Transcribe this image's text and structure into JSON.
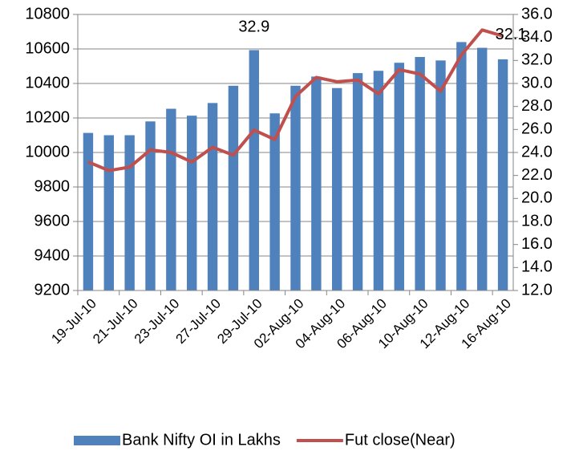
{
  "chart_data": {
    "type": "bar-line",
    "categories": [
      "19-Jul-10",
      null,
      "21-Jul-10",
      null,
      "23-Jul-10",
      null,
      "27-Jul-10",
      null,
      "29-Jul-10",
      null,
      "02-Aug-10",
      null,
      "04-Aug-10",
      null,
      "06-Aug-10",
      null,
      "10-Aug-10",
      null,
      "12-Aug-10",
      null,
      "16-Aug-10"
    ],
    "series": [
      {
        "name": "Bank Nifty OI in Lakhs",
        "type": "bar",
        "axis": "y2",
        "color": "#4f81bd",
        "values": [
          25.7,
          25.5,
          25.5,
          26.7,
          27.8,
          27.2,
          28.3,
          29.8,
          32.9,
          27.4,
          29.8,
          30.6,
          29.6,
          30.9,
          31.1,
          31.8,
          32.3,
          32.0,
          33.6,
          33.1,
          32.1
        ]
      },
      {
        "name": "Fut close(Near)",
        "type": "line",
        "axis": "y",
        "color": "#c0504d",
        "values": [
          9945,
          9895,
          9915,
          10015,
          10000,
          9945,
          10030,
          9985,
          10130,
          10075,
          10325,
          10435,
          10410,
          10420,
          10340,
          10480,
          10455,
          10355,
          10565,
          10710,
          10675
        ]
      }
    ],
    "annotations": [
      {
        "text": "32.9",
        "index": 8
      },
      {
        "text": "32.1",
        "index": 20
      }
    ],
    "ylim": [
      9200,
      10800
    ],
    "yticks": [
      9200,
      9400,
      9600,
      9800,
      10000,
      10200,
      10400,
      10600,
      10800
    ],
    "y2lim": [
      12,
      36
    ],
    "y2ticks": [
      {
        "value": 12,
        "label": "12.0"
      },
      {
        "value": 14,
        "label": "14.0"
      },
      {
        "value": 16,
        "label": "16.0"
      },
      {
        "value": 18,
        "label": "18.0"
      },
      {
        "value": 20,
        "label": "20.0"
      },
      {
        "value": 22,
        "label": "22.0"
      },
      {
        "value": 24,
        "label": "24.0"
      },
      {
        "value": 26,
        "label": "26.0"
      },
      {
        "value": 28,
        "label": "28.0"
      },
      {
        "value": 30,
        "label": "30.0"
      },
      {
        "value": 32,
        "label": "32.0"
      },
      {
        "value": 34,
        "label": "34.0"
      },
      {
        "value": 36,
        "label": "36.0"
      }
    ],
    "grid": true,
    "legend": "bottom"
  }
}
